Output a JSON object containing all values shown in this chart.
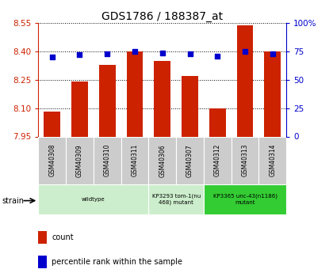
{
  "title": "GDS1786 / 188387_at",
  "samples": [
    "GSM40308",
    "GSM40309",
    "GSM40310",
    "GSM40311",
    "GSM40306",
    "GSM40307",
    "GSM40312",
    "GSM40313",
    "GSM40314"
  ],
  "count_values": [
    8.08,
    8.24,
    8.33,
    8.4,
    8.35,
    8.27,
    8.1,
    8.54,
    8.4
  ],
  "percentile_values": [
    70,
    72,
    73,
    75,
    74,
    73,
    71,
    75,
    73
  ],
  "ylim_left": [
    7.95,
    8.55
  ],
  "ylim_right": [
    0,
    100
  ],
  "yticks_left": [
    7.95,
    8.1,
    8.25,
    8.4,
    8.55
  ],
  "yticks_right": [
    0,
    25,
    50,
    75,
    100
  ],
  "bar_color": "#cc2200",
  "dot_color": "#0000cc",
  "grid_color": "#000000",
  "bg_color": "#ffffff",
  "strain_groups": [
    {
      "label": "wildtype",
      "start": 0,
      "end": 4,
      "color": "#cceecc"
    },
    {
      "label": "KP3293 tom-1(nu\n468) mutant",
      "start": 4,
      "end": 6,
      "color": "#cceecc"
    },
    {
      "label": "KP3365 unc-43(n1186)\nmutant",
      "start": 6,
      "end": 9,
      "color": "#33cc33"
    }
  ],
  "tick_bg_color": "#cccccc",
  "legend_items": [
    {
      "label": "count",
      "color": "#cc2200"
    },
    {
      "label": "percentile rank within the sample",
      "color": "#0000cc"
    }
  ]
}
